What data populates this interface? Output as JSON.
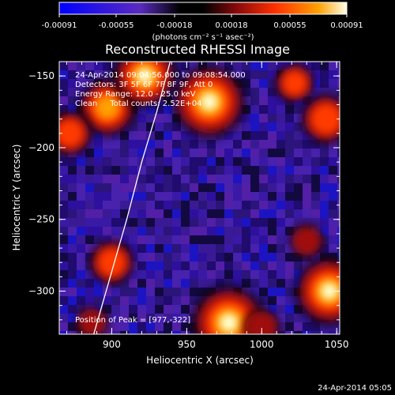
{
  "colorbar": {
    "ticks": [
      "-0.00091",
      "-0.00055",
      "-0.00018",
      "0.00018",
      "0.00055",
      "0.00091"
    ],
    "range": [
      -0.00091,
      0.00091
    ],
    "unit_label": "(photons cm⁻² s⁻¹ asec⁻²)"
  },
  "chart_data": {
    "type": "heatmap",
    "title": "Reconstructed RHESSI Image",
    "xlabel": "Heliocentric X (arcsec)",
    "ylabel": "Heliocentric Y (arcsec)",
    "xlim": [
      865,
      1052
    ],
    "ylim": [
      -330,
      -140
    ],
    "x_ticks": [
      900,
      950,
      1000,
      1050
    ],
    "y_ticks": [
      -150,
      -200,
      -250,
      -300
    ],
    "x_tick_labels": [
      "900",
      "950",
      "1000",
      "1050"
    ],
    "y_tick_labels": [
      "−150",
      "−200",
      "−250",
      "−300"
    ],
    "info_lines": [
      "24-Apr-2014 09:04:56.000 to 09:08:54.000",
      "Detectors: 3F 5F 6F 7F 8F 9F, Att 0",
      "Energy Range: 12.0 - 25.0 keV",
      "Clean     Total counts: 2.52E+04"
    ],
    "peak_label": "Position of Peak = [977,-322]",
    "peak": [
      977,
      -322
    ],
    "limb_arc": [
      [
        888,
        -330
      ],
      [
        899,
        -290
      ],
      [
        910,
        -250
      ],
      [
        920,
        -210
      ],
      [
        930,
        -175
      ],
      [
        939,
        -140
      ]
    ],
    "sources": [
      {
        "x": 978,
        "y": -322,
        "level": 0.00091
      },
      {
        "x": 965,
        "y": -168,
        "level": 0.00088
      },
      {
        "x": 897,
        "y": -172,
        "level": 0.0006
      },
      {
        "x": 922,
        "y": -150,
        "level": 0.0007
      },
      {
        "x": 1045,
        "y": -300,
        "level": 0.0008
      },
      {
        "x": 1043,
        "y": -180,
        "level": 0.00045
      },
      {
        "x": 872,
        "y": -190,
        "level": 0.00035
      },
      {
        "x": 900,
        "y": -280,
        "level": 0.00035
      },
      {
        "x": 1022,
        "y": -155,
        "level": 0.00025
      },
      {
        "x": 1000,
        "y": -325,
        "level": 0.0002
      },
      {
        "x": 887,
        "y": -322,
        "level": 0.00012
      },
      {
        "x": 1030,
        "y": -265,
        "level": 0.00015
      }
    ]
  },
  "footer": {
    "timestamp": "24-Apr-2014 05:05"
  }
}
